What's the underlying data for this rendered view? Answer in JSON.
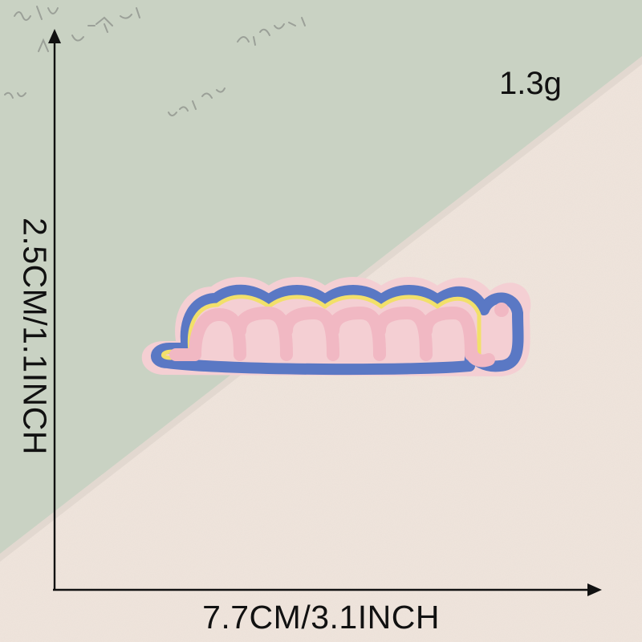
{
  "measurements": {
    "weight": "1.3g",
    "width": "7.7CM/3.1INCH",
    "height": "2.5CM/1.1INCH"
  },
  "colors": {
    "background_fabric": "#efe4dc",
    "background_card": "#c9d2c3",
    "patch_base": "#f4cfd3",
    "patch_blue": "#5a78c4",
    "patch_yellow": "#f2e06a",
    "patch_pink": "#f1b8c3",
    "dimension_lines": "#111111"
  },
  "icons": {
    "card": "handwritten-note-card",
    "patch": "embroidered-patch",
    "arrows": "dimension-arrows"
  }
}
